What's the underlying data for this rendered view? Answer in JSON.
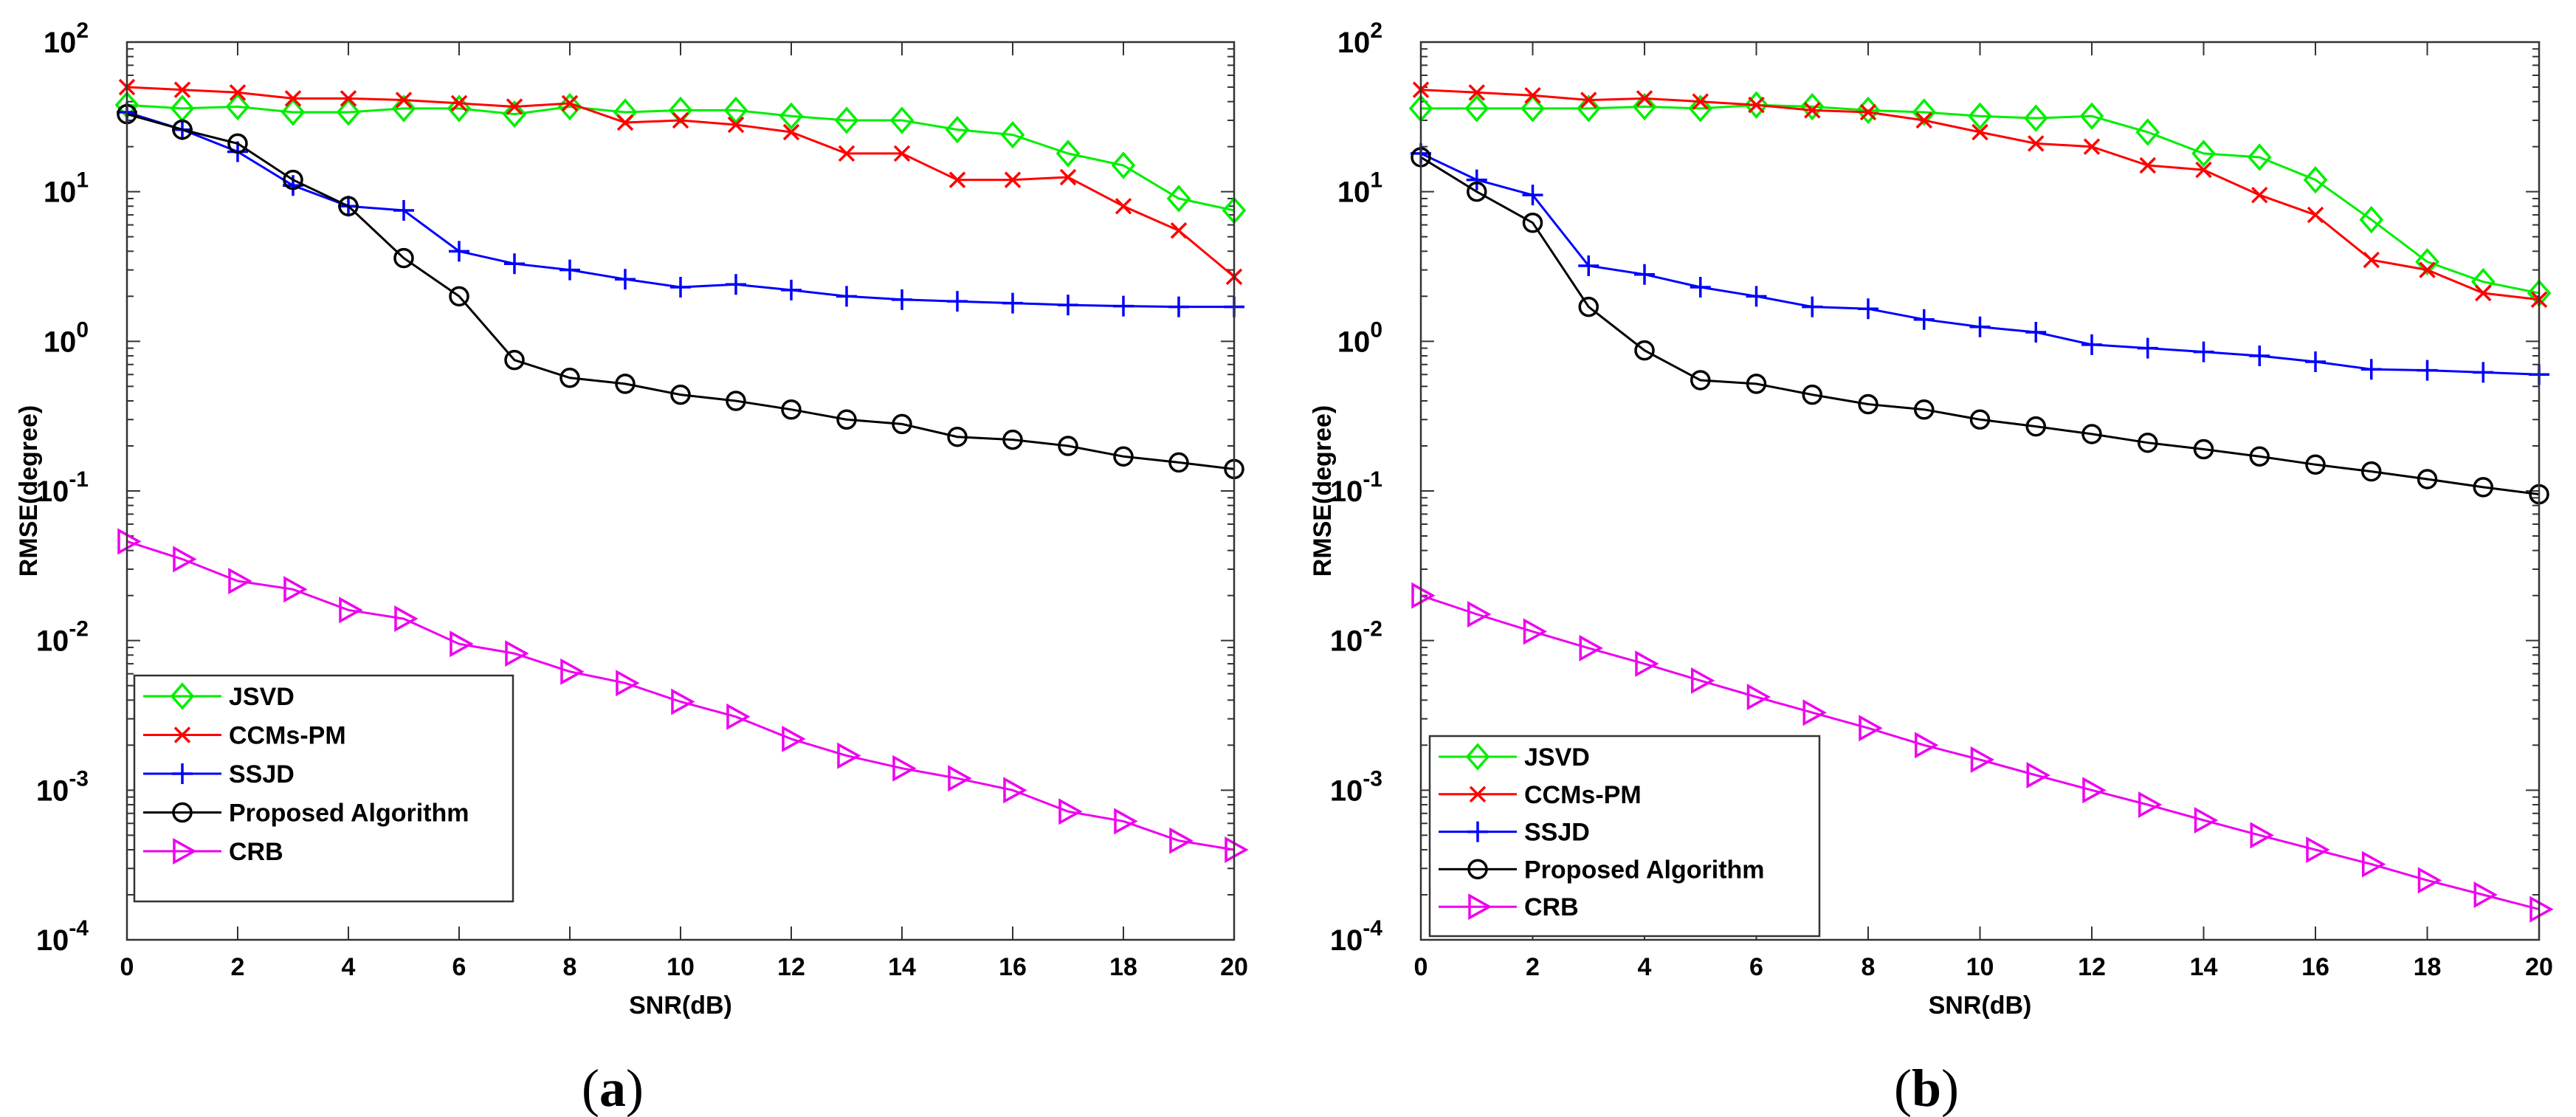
{
  "figure": {
    "panels": [
      {
        "caption_open": "(",
        "caption_letter": "a",
        "caption_close": ")"
      },
      {
        "caption_open": "(",
        "caption_letter": "b",
        "caption_close": ")"
      }
    ]
  },
  "chart_data": [
    {
      "type": "line",
      "yscale": "log",
      "title": "",
      "xlabel": "SNR(dB)",
      "ylabel": "RMSE(degree)",
      "xlim": [
        0,
        20
      ],
      "ylim": [
        0.0001,
        100
      ],
      "xticks": [
        0,
        2,
        4,
        6,
        8,
        10,
        12,
        14,
        16,
        18,
        20
      ],
      "yticks": [
        {
          "value": 0.0001,
          "base": "10",
          "exp": "-4"
        },
        {
          "value": 0.001,
          "base": "10",
          "exp": "-3"
        },
        {
          "value": 0.01,
          "base": "10",
          "exp": "-2"
        },
        {
          "value": 0.1,
          "base": "10",
          "exp": "-1"
        },
        {
          "value": 1,
          "base": "10",
          "exp": "0"
        },
        {
          "value": 10,
          "base": "10",
          "exp": "1"
        },
        {
          "value": 100,
          "base": "10",
          "exp": "2"
        }
      ],
      "legend_position": "bottom-left",
      "x": [
        0,
        1,
        2,
        3,
        4,
        5,
        6,
        7,
        8,
        9,
        10,
        11,
        12,
        13,
        14,
        15,
        16,
        17,
        18,
        19,
        20
      ],
      "series": [
        {
          "name": "JSVD",
          "color": "#00ee00",
          "marker": "diamond",
          "values": [
            38,
            36,
            37,
            34,
            34,
            36,
            36,
            33,
            37,
            34,
            35,
            35,
            32,
            30,
            30,
            26,
            24,
            18,
            15,
            9,
            7.5
          ]
        },
        {
          "name": "CCMs-PM",
          "color": "#ff0000",
          "marker": "x",
          "values": [
            50,
            48,
            46,
            42,
            42,
            41,
            39,
            37,
            39,
            29,
            30,
            28,
            25,
            18,
            18,
            12,
            12,
            12.5,
            8,
            5.5,
            2.7
          ]
        },
        {
          "name": "SSJD",
          "color": "#0000ff",
          "marker": "plus",
          "values": [
            34,
            26,
            18.5,
            11,
            8,
            7.5,
            4,
            3.3,
            3,
            2.6,
            2.3,
            2.4,
            2.2,
            2,
            1.9,
            1.85,
            1.8,
            1.75,
            1.72,
            1.7,
            1.7
          ]
        },
        {
          "name": "Proposed Algorithm",
          "color": "#000000",
          "marker": "circle",
          "values": [
            33,
            26,
            21,
            12,
            8,
            3.6,
            2,
            0.75,
            0.57,
            0.52,
            0.44,
            0.4,
            0.35,
            0.3,
            0.28,
            0.23,
            0.22,
            0.2,
            0.17,
            0.155,
            0.14
          ]
        },
        {
          "name": "CRB",
          "color": "#ee00ee",
          "marker": "triangle-right",
          "values": [
            0.046,
            0.035,
            0.025,
            0.022,
            0.016,
            0.014,
            0.0095,
            0.0082,
            0.0062,
            0.0052,
            0.0039,
            0.0031,
            0.0022,
            0.0017,
            0.0014,
            0.0012,
            0.001,
            0.00072,
            0.00062,
            0.00046,
            0.0004
          ]
        }
      ]
    },
    {
      "type": "line",
      "yscale": "log",
      "title": "",
      "xlabel": "SNR(dB)",
      "ylabel": "RMSE(degree)",
      "xlim": [
        0,
        20
      ],
      "ylim": [
        0.0001,
        100
      ],
      "xticks": [
        0,
        2,
        4,
        6,
        8,
        10,
        12,
        14,
        16,
        18,
        20
      ],
      "yticks": [
        {
          "value": 0.0001,
          "base": "10",
          "exp": "-4"
        },
        {
          "value": 0.001,
          "base": "10",
          "exp": "-3"
        },
        {
          "value": 0.01,
          "base": "10",
          "exp": "-2"
        },
        {
          "value": 0.1,
          "base": "10",
          "exp": "-1"
        },
        {
          "value": 1,
          "base": "10",
          "exp": "0"
        },
        {
          "value": 10,
          "base": "10",
          "exp": "1"
        },
        {
          "value": 100,
          "base": "10",
          "exp": "2"
        }
      ],
      "legend_position": "bottom-left",
      "x": [
        0,
        1,
        2,
        3,
        4,
        5,
        6,
        7,
        8,
        9,
        10,
        11,
        12,
        13,
        14,
        15,
        16,
        17,
        18,
        19,
        20
      ],
      "series": [
        {
          "name": "JSVD",
          "color": "#00ee00",
          "marker": "diamond",
          "values": [
            36,
            36,
            36,
            36,
            37,
            36,
            38,
            37,
            35,
            34,
            32,
            31,
            32,
            25,
            18,
            17,
            12,
            6.5,
            3.4,
            2.5,
            2.1
          ]
        },
        {
          "name": "CCMs-PM",
          "color": "#ff0000",
          "marker": "x",
          "values": [
            48,
            46,
            44,
            41,
            42,
            40,
            38,
            35,
            34,
            30,
            25,
            21,
            20,
            15,
            14,
            9.5,
            7,
            3.5,
            3,
            2.1,
            1.9
          ]
        },
        {
          "name": "SSJD",
          "color": "#0000ff",
          "marker": "plus",
          "values": [
            18,
            12,
            9.5,
            3.2,
            2.8,
            2.3,
            2,
            1.7,
            1.65,
            1.4,
            1.25,
            1.15,
            0.95,
            0.9,
            0.85,
            0.8,
            0.73,
            0.65,
            0.64,
            0.62,
            0.6
          ]
        },
        {
          "name": "Proposed Algorithm",
          "color": "#000000",
          "marker": "circle",
          "values": [
            17,
            10,
            6.2,
            1.7,
            0.87,
            0.55,
            0.52,
            0.44,
            0.38,
            0.35,
            0.3,
            0.27,
            0.24,
            0.21,
            0.19,
            0.17,
            0.15,
            0.135,
            0.12,
            0.106,
            0.095
          ]
        },
        {
          "name": "CRB",
          "color": "#ee00ee",
          "marker": "triangle-right",
          "values": [
            0.02,
            0.015,
            0.0115,
            0.0089,
            0.007,
            0.0054,
            0.0042,
            0.0033,
            0.0026,
            0.002,
            0.0016,
            0.00126,
            0.001,
            0.0008,
            0.00063,
            0.0005,
            0.0004,
            0.00032,
            0.00025,
            0.0002,
            0.00016
          ]
        }
      ]
    }
  ]
}
